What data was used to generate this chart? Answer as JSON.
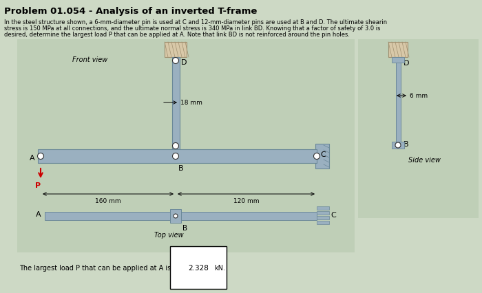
{
  "title": "Problem 01.054 - Analysis of an inverted T-frame",
  "desc1": "In the steel structure shown, a 6-mm-diameter pin is used at C and 12-mm-diameter pins are used at B and D. The ultimate shearin",
  "desc2": "stress is 150 MPa at all connections, and the ultimate normal stress is 340 MPa in link BD. Knowing that a factor of safety of 3.0 is",
  "desc3": "desired, determine the largest load P that can be applied at A. Note that link BD is not reinforced around the pin holes.",
  "answer_prefix": "The largest load P that can be applied at A is",
  "answer_value": "2.328",
  "answer_unit": "kN.",
  "bg_color": "#cdd9c5",
  "diag_bg": "#bfcfb7",
  "steel_face": "#9ab0c0",
  "steel_edge": "#6a8898",
  "wall_face": "#c8b898",
  "wall_hatch": "#a09070",
  "wall_top": "#d8c8a8",
  "pin_face": "#ffffff",
  "pin_edge": "#444444",
  "red_arrow": "#cc0000",
  "front_view": "Front view",
  "top_view": "Top view",
  "side_view": "Side view",
  "d18": "18 mm",
  "d120": "120 mm",
  "d160": "160 mm",
  "d6": "6 mm"
}
